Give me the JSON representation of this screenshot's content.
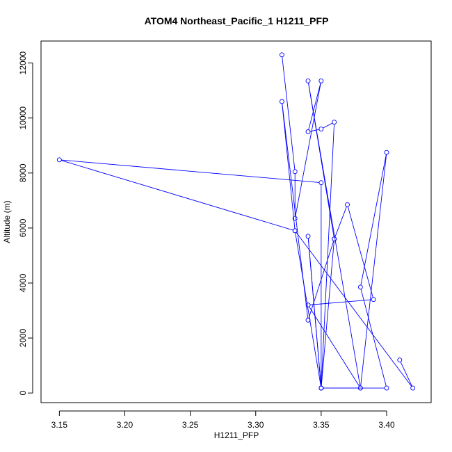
{
  "chart_data": {
    "type": "line",
    "title": "ATOM4 Northeast_Pacific_1 H1211_PFP",
    "xlabel": "H1211_PFP",
    "ylabel": "Altitude (m)",
    "xlim": [
      3.136,
      3.434
    ],
    "ylim": [
      -350,
      12800
    ],
    "x_ticks": [
      3.15,
      3.2,
      3.25,
      3.3,
      3.35,
      3.4
    ],
    "x_tick_labels": [
      "3.15",
      "3.20",
      "3.25",
      "3.30",
      "3.35",
      "3.40"
    ],
    "y_ticks": [
      0,
      2000,
      4000,
      6000,
      8000,
      10000,
      12000
    ],
    "y_tick_labels": [
      "0",
      "2000",
      "4000",
      "6000",
      "8000",
      "10000",
      "12000"
    ],
    "grid": false,
    "series_color": "#0000ff",
    "series": [
      {
        "x": [
          3.32,
          3.33,
          3.33,
          3.35,
          3.34,
          3.35,
          3.36,
          3.35,
          3.38,
          3.34,
          3.36,
          3.35,
          3.34,
          3.35,
          3.4,
          3.38,
          3.4,
          3.38,
          3.34,
          3.39,
          3.37,
          3.36,
          3.34,
          3.32,
          3.33,
          3.35,
          3.35,
          3.15,
          3.33,
          3.42,
          3.41
        ],
        "y": [
          12300,
          8050,
          6350,
          11350,
          9500,
          9600,
          9850,
          180,
          180,
          11350,
          5600,
          180,
          5700,
          180,
          180,
          3850,
          8750,
          180,
          3200,
          3400,
          6850,
          5600,
          2650,
          10600,
          5900,
          180,
          7650,
          8480,
          5900,
          180,
          1200
        ]
      }
    ]
  }
}
